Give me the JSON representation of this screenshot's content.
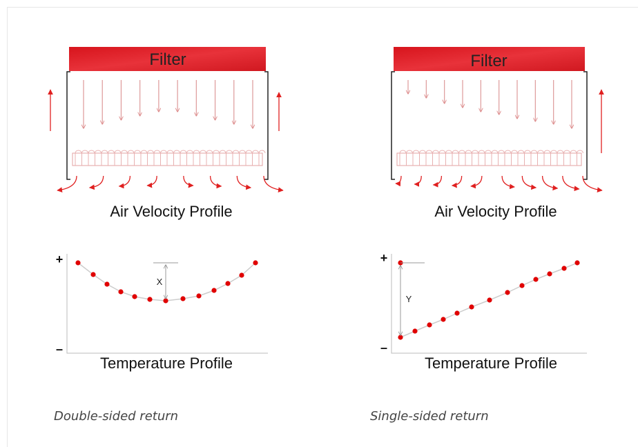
{
  "panels": [
    {
      "filter": "Filter",
      "velocity_label": "Air Velocity Profile",
      "plus": "+",
      "minus": "–",
      "dimension": "X",
      "temperature_label": "Temperature Profile",
      "caption": "Double-sided return"
    },
    {
      "filter": "Filter",
      "velocity_label": "Air Velocity Profile",
      "plus": "+",
      "minus": "–",
      "dimension": "Y",
      "temperature_label": "Temperature Profile",
      "caption": "Single-sided return"
    }
  ]
}
